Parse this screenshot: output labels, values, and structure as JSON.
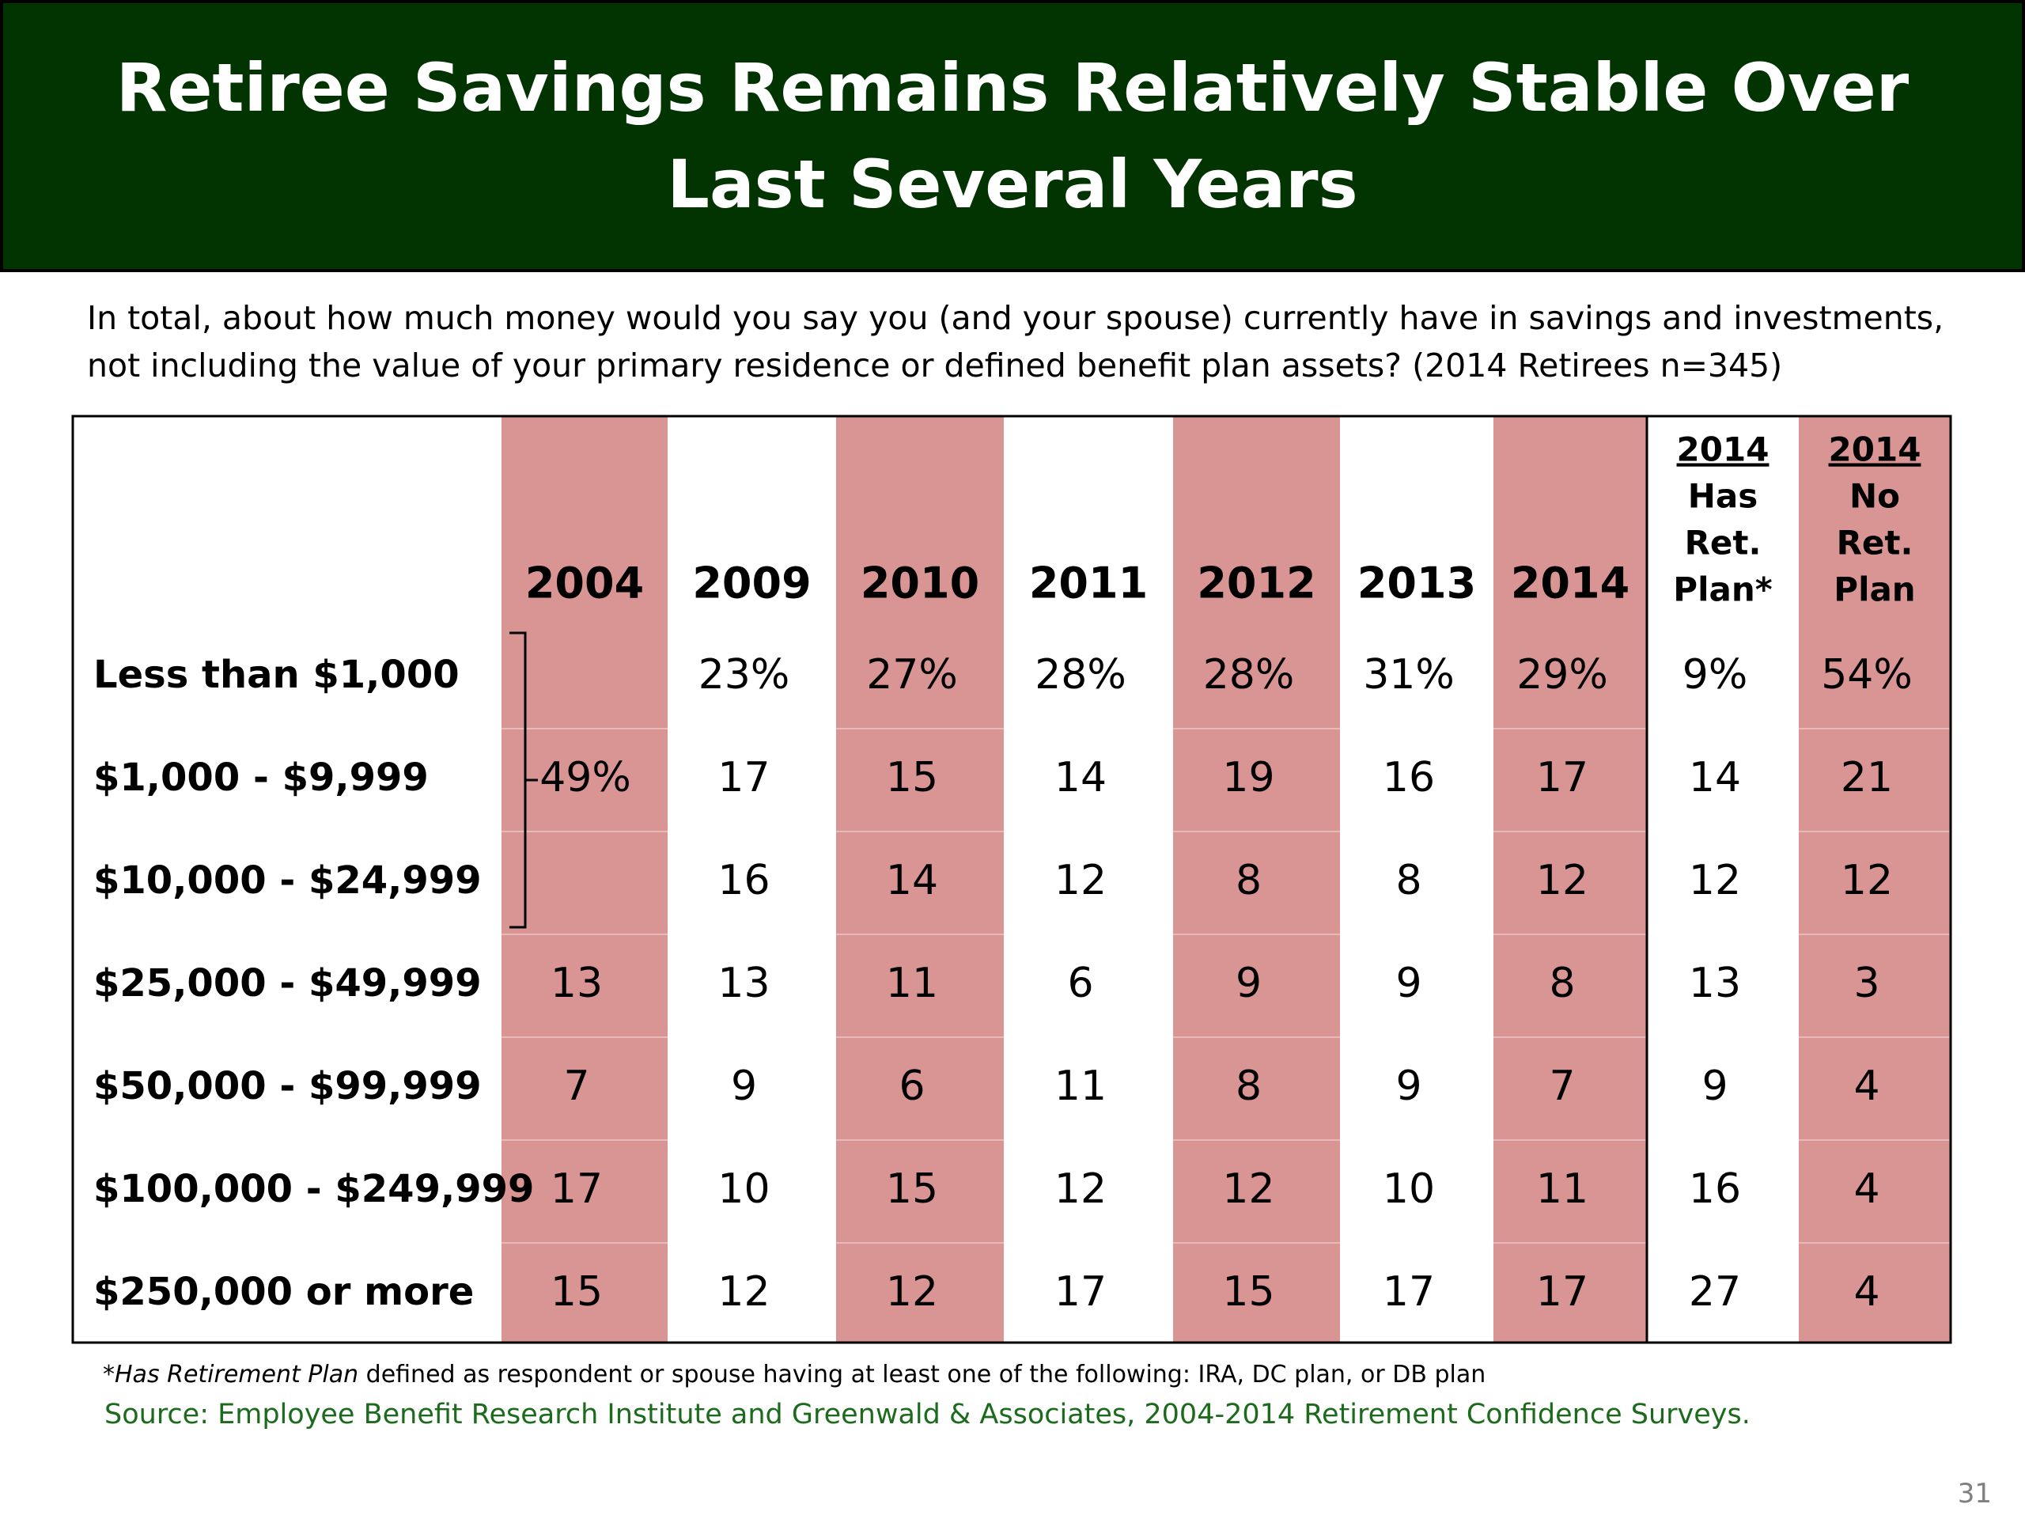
{
  "title": "Retiree Savings Remains Relatively Stable Over Last Several Years",
  "question": "In total, about how much money would you say you (and your spouse) currently have in savings and investments, not including the value of your primary residence or defined benefit plan assets? (2014 Retirees n=345)",
  "footnote": {
    "marker": "*",
    "term": "Has Retirement Plan",
    "text": " defined as respondent or spouse having at least one of the following: IRA, DC plan, or DB plan"
  },
  "source": "Source:  Employee Benefit Research Institute and Greenwald & Associates, 2004-2014 Retirement Confidence Surveys.",
  "page_number": "31",
  "colors": {
    "title_bg": "#013401",
    "band": "#d99594",
    "source_text": "#1c6b1c"
  },
  "chart_data": {
    "type": "table",
    "title": "Retiree Savings Remains Relatively Stable Over Last Several Years",
    "row_labels": [
      "Less than $1,000",
      "$1,000 - $9,999",
      "$10,000 - $24,999",
      "$25,000 - $49,999",
      "$50,000 - $99,999",
      "$100,000 - $249,999",
      "$250,000 or more"
    ],
    "columns": [
      {
        "header": [
          "2004"
        ],
        "values": [
          null,
          null,
          null,
          "13",
          "7",
          "17",
          "15"
        ],
        "shaded": true
      },
      {
        "header": [
          "2009"
        ],
        "values": [
          "23%",
          "17",
          "16",
          "13",
          "9",
          "10",
          "12"
        ],
        "shaded": false
      },
      {
        "header": [
          "2010"
        ],
        "values": [
          "27%",
          "15",
          "14",
          "11",
          "6",
          "15",
          "12"
        ],
        "shaded": true
      },
      {
        "header": [
          "2011"
        ],
        "values": [
          "28%",
          "14",
          "12",
          "6",
          "11",
          "12",
          "17"
        ],
        "shaded": false
      },
      {
        "header": [
          "2012"
        ],
        "values": [
          "28%",
          "19",
          "8",
          "9",
          "8",
          "12",
          "15"
        ],
        "shaded": true
      },
      {
        "header": [
          "2013"
        ],
        "values": [
          "31%",
          "16",
          "8",
          "9",
          "9",
          "10",
          "17"
        ],
        "shaded": false
      },
      {
        "header": [
          "2014"
        ],
        "values": [
          "29%",
          "17",
          "12",
          "8",
          "7",
          "11",
          "17"
        ],
        "shaded": true
      },
      {
        "header": [
          "2014",
          "Has",
          "Ret.",
          "Plan*"
        ],
        "values": [
          "9%",
          "14",
          "12",
          "13",
          "9",
          "16",
          "27"
        ],
        "shaded": false
      },
      {
        "header": [
          "2014",
          "No",
          "Ret.",
          "Plan"
        ],
        "values": [
          "54%",
          "21",
          "12",
          "3",
          "4",
          "4",
          "4"
        ],
        "shaded": true
      }
    ],
    "merged_2004_under_25000": "49%"
  }
}
